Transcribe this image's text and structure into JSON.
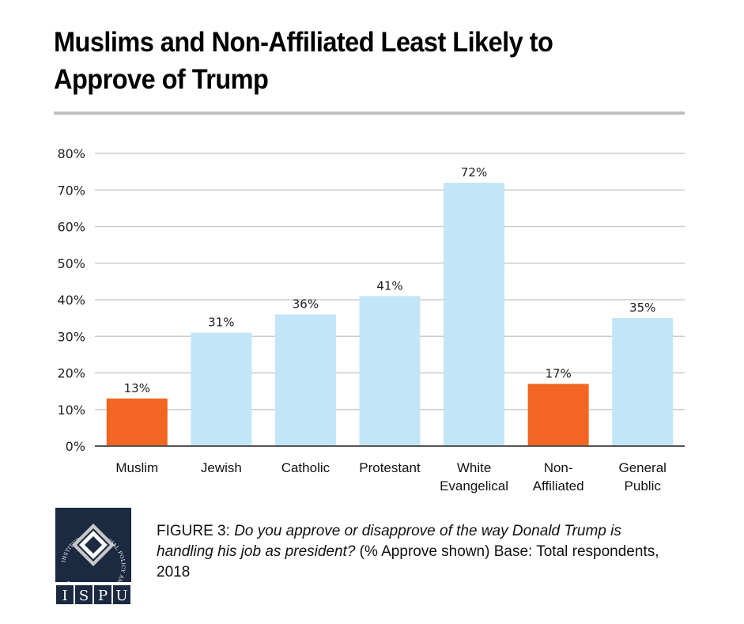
{
  "header": {
    "title": "Muslims and Non-Affiliated Least Likely to Approve of Trump"
  },
  "chart_data": {
    "type": "bar",
    "title": "Muslims and Non-Affiliated Least Likely to Approve of Trump",
    "xlabel": "",
    "ylabel": "",
    "categories": [
      "Muslim",
      "Jewish",
      "Catholic",
      "Protestant",
      "White Evangelical",
      "Non-Affiliated",
      "General Public"
    ],
    "category_lines": [
      [
        "Muslim"
      ],
      [
        "Jewish"
      ],
      [
        "Catholic"
      ],
      [
        "Protestant"
      ],
      [
        "White",
        "Evangelical"
      ],
      [
        "Non-",
        "Affiliated"
      ],
      [
        "General",
        "Public"
      ]
    ],
    "values": [
      13,
      31,
      36,
      41,
      72,
      17,
      35
    ],
    "data_labels": [
      "13%",
      "31%",
      "36%",
      "41%",
      "72%",
      "17%",
      "35%"
    ],
    "highlight": [
      true,
      false,
      false,
      false,
      false,
      true,
      false
    ],
    "ylim": [
      0,
      80
    ],
    "yticks": [
      0,
      10,
      20,
      30,
      40,
      50,
      60,
      70,
      80
    ],
    "ytick_labels": [
      "0%",
      "10%",
      "20%",
      "30%",
      "40%",
      "50%",
      "60%",
      "70%",
      "80%"
    ],
    "grid": true,
    "legend": "none",
    "colors": {
      "highlight": "#f26522",
      "default": "#c2e5f8",
      "grid": "#cccccc",
      "axis": "#555555"
    }
  },
  "caption": {
    "figure_label": "FIGURE 3",
    "separator": ": ",
    "question": "Do you approve or disapprove of the way Donald Trump is handling his job as president?",
    "note": " (% Approve shown) Base: Total respondents, 2018"
  },
  "logo": {
    "ring_text": "INSTITUTE FOR SOCIAL POLICY AND UNDERSTANDING",
    "letters": [
      "I",
      "S",
      "P",
      "U"
    ],
    "colors": {
      "navy": "#1b2a41",
      "silver": "#c8c8c8",
      "white": "#ffffff"
    }
  }
}
